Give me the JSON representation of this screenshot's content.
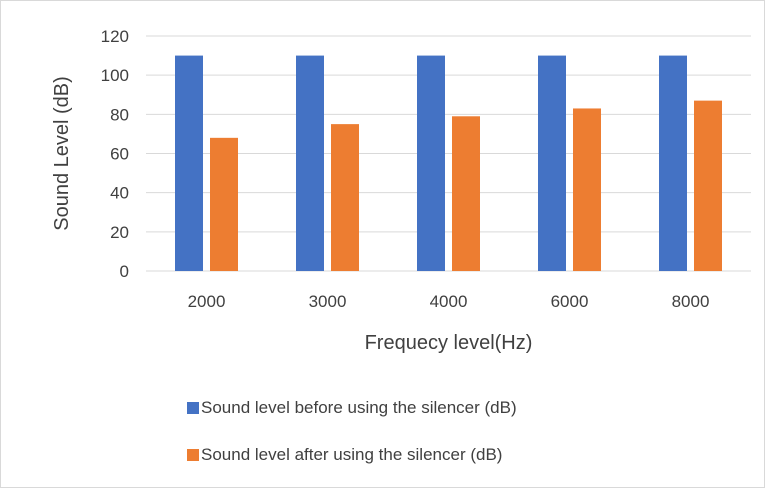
{
  "chart_data": {
    "type": "bar",
    "title": "",
    "xlabel": "Frequecy level(Hz)",
    "ylabel": "Sound Level (dB)",
    "categories": [
      "2000",
      "3000",
      "4000",
      "6000",
      "8000"
    ],
    "series": [
      {
        "name": "Sound level before using the silencer (dB)",
        "values": [
          110,
          110,
          110,
          110,
          110
        ],
        "color": "#4472C4"
      },
      {
        "name": "Sound level after using the silencer (dB)",
        "values": [
          68,
          75,
          79,
          83,
          87
        ],
        "color": "#ED7D31"
      }
    ],
    "ylim": [
      0,
      120
    ],
    "yticks": [
      0,
      20,
      40,
      60,
      80,
      100,
      120
    ],
    "grid": true,
    "legend_position": "bottom"
  }
}
